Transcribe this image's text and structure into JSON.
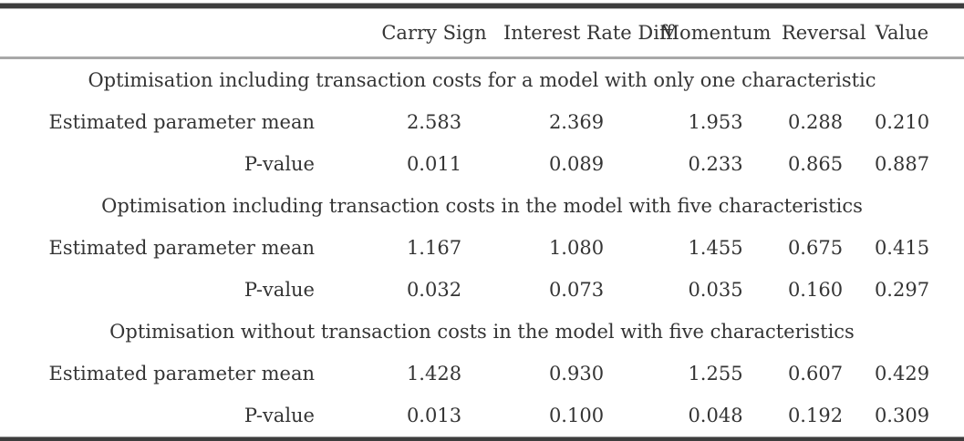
{
  "table": {
    "columns": [
      "",
      "Carry Sign",
      "Interest Rate Diff",
      "Momentum",
      "Reversal",
      "Value"
    ],
    "sections": [
      {
        "title": "Optimisation including transaction costs for a model with only one characteristic",
        "rows": [
          {
            "label": "Estimated parameter mean",
            "values": [
              "2.583",
              "2.369",
              "1.953",
              "0.288",
              "0.210"
            ]
          },
          {
            "label": "P-value",
            "values": [
              "0.011",
              "0.089",
              "0.233",
              "0.865",
              "0.887"
            ]
          }
        ]
      },
      {
        "title": "Optimisation including transaction costs in the model with five characteristics",
        "rows": [
          {
            "label": "Estimated parameter mean",
            "values": [
              "1.167",
              "1.080",
              "1.455",
              "0.675",
              "0.415"
            ]
          },
          {
            "label": "P-value",
            "values": [
              "0.032",
              "0.073",
              "0.035",
              "0.160",
              "0.297"
            ]
          }
        ]
      },
      {
        "title": "Optimisation without transaction costs in the model with five characteristics",
        "rows": [
          {
            "label": "Estimated parameter mean",
            "values": [
              "1.428",
              "0.930",
              "1.255",
              "0.607",
              "0.429"
            ]
          },
          {
            "label": "P-value",
            "values": [
              "0.013",
              "0.100",
              "0.048",
              "0.192",
              "0.309"
            ]
          }
        ]
      }
    ]
  },
  "chart_data": {
    "type": "table",
    "columns": [
      "",
      "Carry Sign",
      "Interest Rate Diff",
      "Momentum",
      "Reversal",
      "Value"
    ],
    "rows": [
      [
        "Optimisation including transaction costs for a model with only one characteristic",
        null,
        null,
        null,
        null,
        null
      ],
      [
        "Estimated parameter mean",
        2.583,
        2.369,
        1.953,
        0.288,
        0.21
      ],
      [
        "P-value",
        0.011,
        0.089,
        0.233,
        0.865,
        0.887
      ],
      [
        "Optimisation including transaction costs in the model with five characteristics",
        null,
        null,
        null,
        null,
        null
      ],
      [
        "Estimated parameter mean",
        1.167,
        1.08,
        1.455,
        0.675,
        0.415
      ],
      [
        "P-value",
        0.032,
        0.073,
        0.035,
        0.16,
        0.297
      ],
      [
        "Optimisation without transaction costs in the model with five characteristics",
        null,
        null,
        null,
        null,
        null
      ],
      [
        "Estimated parameter mean",
        1.428,
        0.93,
        1.255,
        0.607,
        0.429
      ],
      [
        "P-value",
        0.013,
        0.1,
        0.048,
        0.192,
        0.309
      ]
    ]
  }
}
